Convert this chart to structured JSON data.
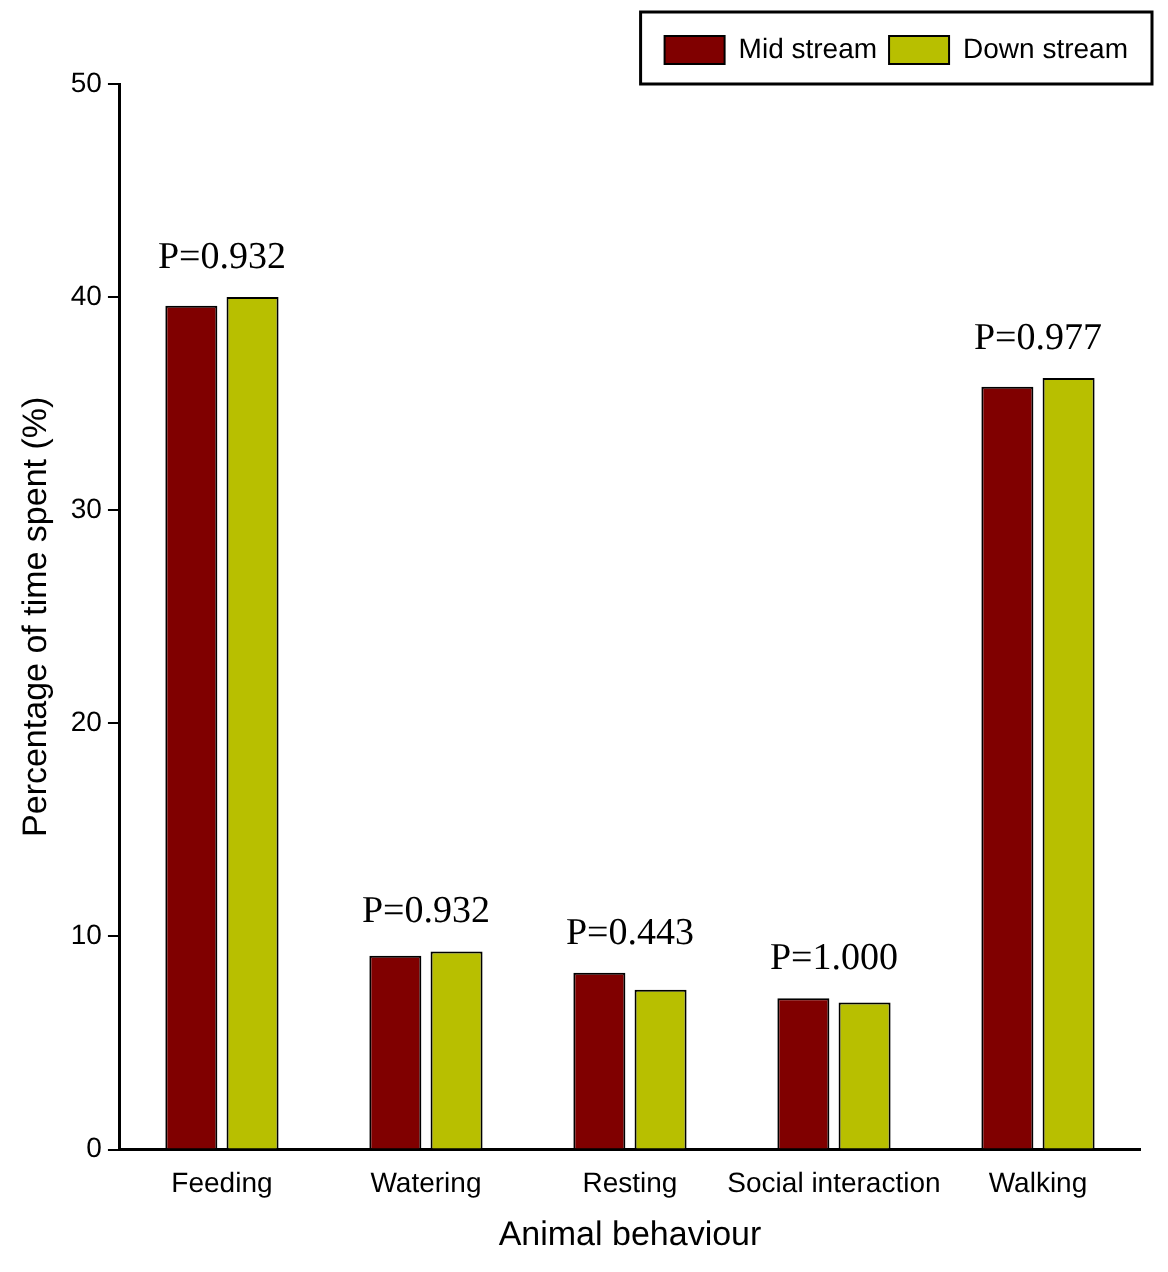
{
  "chart_data": {
    "type": "bar",
    "xlabel": "Animal behaviour",
    "ylabel": "Percentage of time spent (%)",
    "categories": [
      "Feeding",
      "Watering",
      "Resting",
      "Social interaction",
      "Walking"
    ],
    "series": [
      {
        "name": "Mid stream",
        "color": "#800000",
        "values": [
          39.6,
          9.1,
          8.3,
          7.1,
          35.8
        ]
      },
      {
        "name": "Down stream",
        "color": "#b8bf00",
        "values": [
          40.0,
          9.3,
          7.5,
          6.9,
          36.2
        ]
      }
    ],
    "ylim": [
      0,
      50
    ],
    "yticks": [
      0,
      10,
      20,
      30,
      40,
      50
    ],
    "grid": false,
    "legend": "top right",
    "annotations": [
      "P=0.932",
      "P=0.932",
      "P=0.443",
      "P=1.000",
      "P=0.977"
    ]
  }
}
